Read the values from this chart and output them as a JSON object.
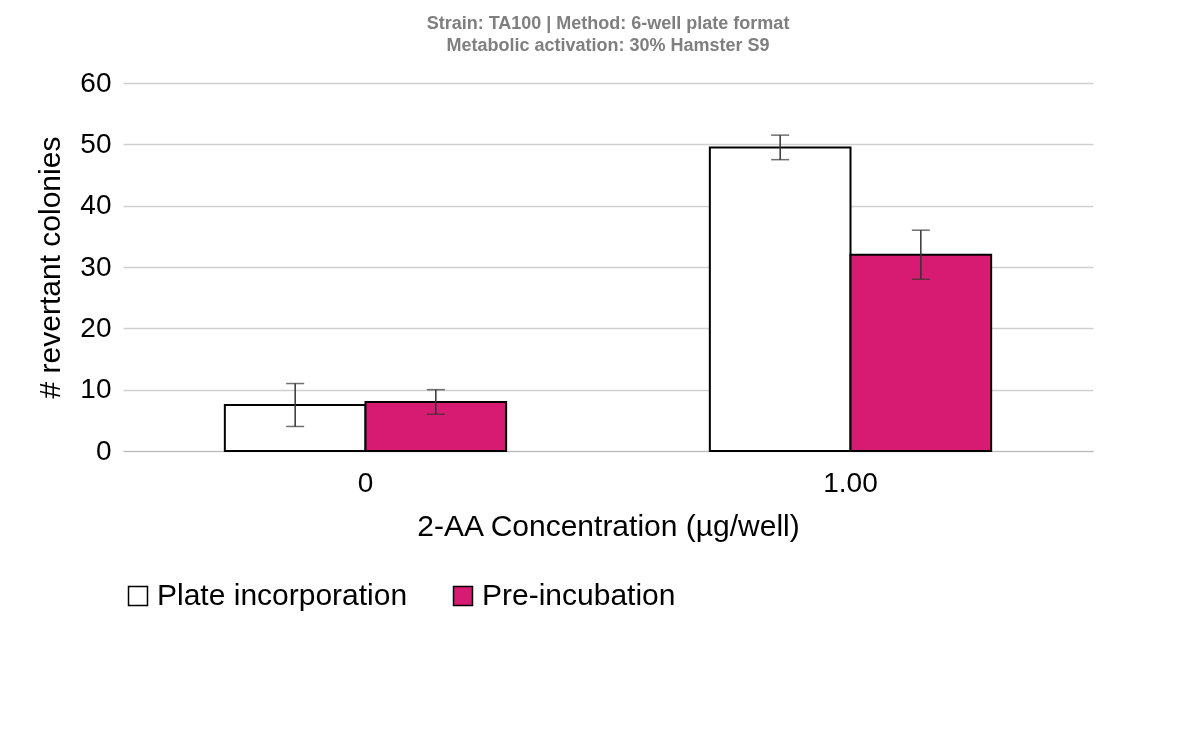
{
  "chart_data": {
    "type": "bar",
    "title": "Strain: TA100 | Method: 6-well plate format",
    "subtitle": "Metabolic  activation: 30% Hamster S9",
    "xlabel": "2-AA Concentration  (µg/well)",
    "ylabel": "# revertant colonies",
    "categories": [
      "0",
      "1.00"
    ],
    "series": [
      {
        "name": "Plate incorporation",
        "color": "#ffffff",
        "values": [
          7.5,
          49.5
        ],
        "errors": [
          3.5,
          2
        ]
      },
      {
        "name": "Pre-incubation",
        "color": "#d81b72",
        "values": [
          8,
          32
        ],
        "errors": [
          2,
          4
        ]
      }
    ],
    "ylim": [
      0,
      60
    ],
    "yticks": [
      0,
      10,
      20,
      30,
      40,
      50,
      60
    ],
    "grid": "y",
    "legend": "bottom"
  }
}
